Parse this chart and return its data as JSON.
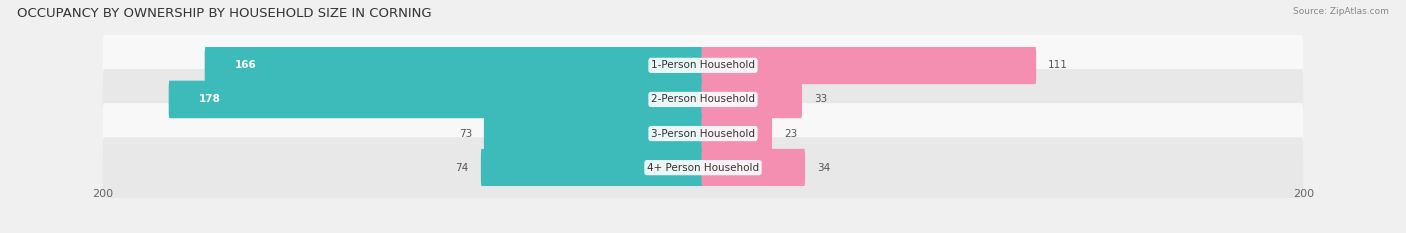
{
  "title": "OCCUPANCY BY OWNERSHIP BY HOUSEHOLD SIZE IN CORNING",
  "source": "Source: ZipAtlas.com",
  "categories": [
    "1-Person Household",
    "2-Person Household",
    "3-Person Household",
    "4+ Person Household"
  ],
  "owner_values": [
    166,
    178,
    73,
    74
  ],
  "renter_values": [
    111,
    33,
    23,
    34
  ],
  "owner_color": "#3DBBBB",
  "renter_color": "#F48FB1",
  "axis_max": 200,
  "bg_color": "#f0f0f0",
  "row_bg_light": "#f8f8f8",
  "row_bg_dark": "#e8e8e8",
  "title_fontsize": 9.5,
  "tick_fontsize": 8,
  "cat_fontsize": 7.5,
  "val_fontsize": 7.5
}
